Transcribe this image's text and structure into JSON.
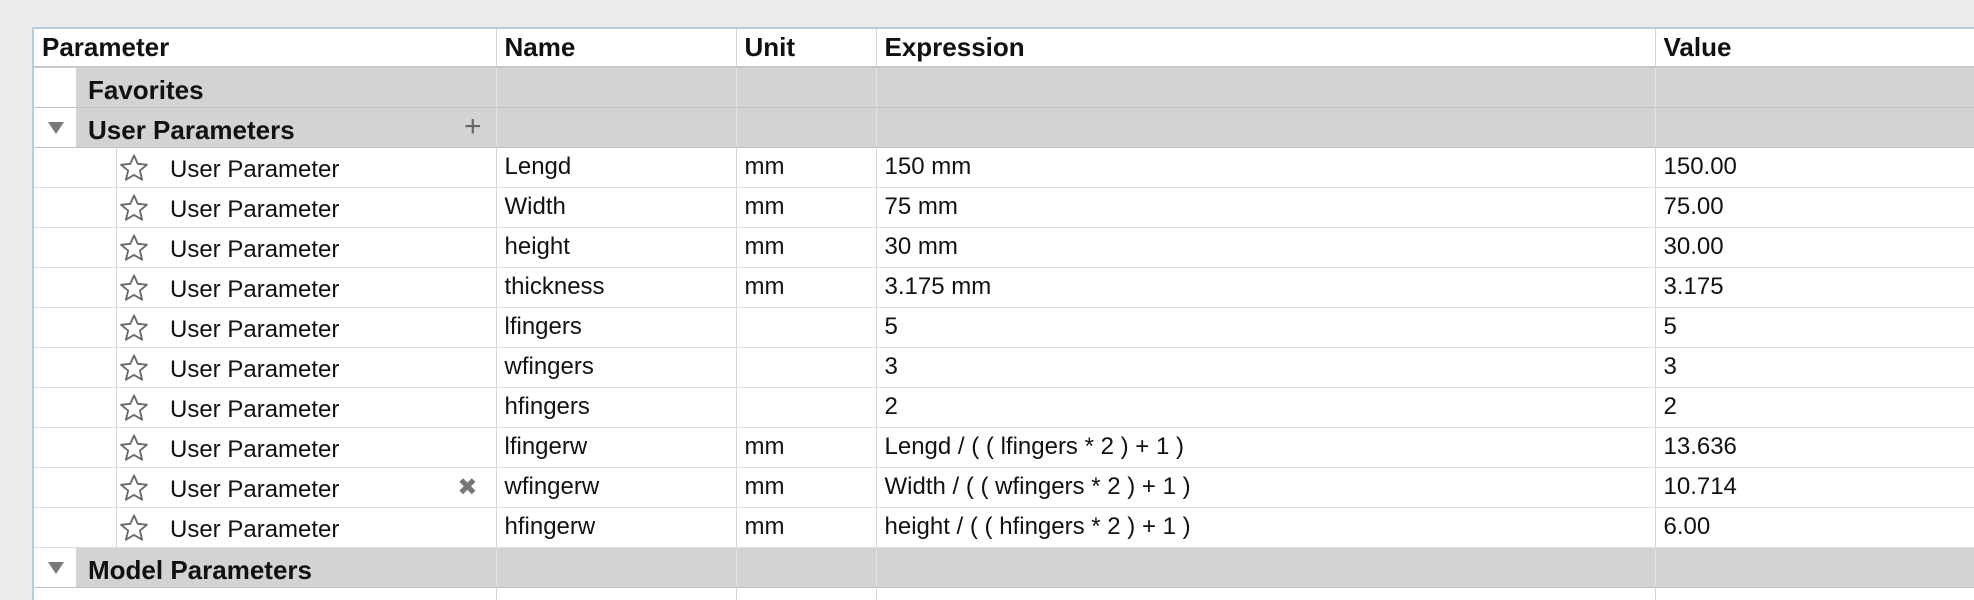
{
  "headers": {
    "parameter": "Parameter",
    "name": "Name",
    "unit": "Unit",
    "expression": "Expression",
    "value": "Value"
  },
  "groups": {
    "favorites": "Favorites",
    "user": "User Parameters",
    "model": "Model Parameters"
  },
  "icons": {
    "expand": "caret-down-icon",
    "add": "plus-icon",
    "favorite": "star-outline-icon",
    "delete": "x-icon"
  },
  "rows": [
    {
      "parameter": "User Parameter",
      "name": "Lengd",
      "unit": "mm",
      "expression": "150 mm",
      "value": "150.00"
    },
    {
      "parameter": "User Parameter",
      "name": "Width",
      "unit": "mm",
      "expression": "75 mm",
      "value": "75.00"
    },
    {
      "parameter": "User Parameter",
      "name": "height",
      "unit": "mm",
      "expression": "30 mm",
      "value": "30.00"
    },
    {
      "parameter": "User Parameter",
      "name": "thickness",
      "unit": "mm",
      "expression": "3.175 mm",
      "value": "3.175"
    },
    {
      "parameter": "User Parameter",
      "name": "lfingers",
      "unit": "",
      "expression": "5",
      "value": "5"
    },
    {
      "parameter": "User Parameter",
      "name": "wfingers",
      "unit": "",
      "expression": "3",
      "value": "3"
    },
    {
      "parameter": "User Parameter",
      "name": "hfingers",
      "unit": "",
      "expression": "2",
      "value": "2"
    },
    {
      "parameter": "User Parameter",
      "name": "lfingerw",
      "unit": "mm",
      "expression": "Lengd / ( ( lfingers * 2 ) + 1 )",
      "value": "13.636"
    },
    {
      "parameter": "User Parameter",
      "name": "wfingerw",
      "unit": "mm",
      "expression": "Width / ( ( wfingers * 2 ) + 1 )",
      "value": "10.714"
    },
    {
      "parameter": "User Parameter",
      "name": "hfingerw",
      "unit": "mm",
      "expression": "height / ( ( hfingers * 2 ) + 1 )",
      "value": "6.00"
    }
  ]
}
